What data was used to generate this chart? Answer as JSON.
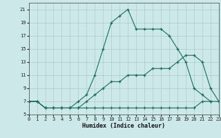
{
  "xlabel": "Humidex (Indice chaleur)",
  "background_color": "#cce8e8",
  "line_color": "#1a6b5a",
  "grid_color": "#aacccc",
  "xlim": [
    0,
    23
  ],
  "ylim": [
    5,
    22
  ],
  "yticks": [
    5,
    7,
    9,
    11,
    13,
    15,
    17,
    19,
    21
  ],
  "xticks": [
    0,
    1,
    2,
    3,
    4,
    5,
    6,
    7,
    8,
    9,
    10,
    11,
    12,
    13,
    14,
    15,
    16,
    17,
    18,
    19,
    20,
    21,
    22,
    23
  ],
  "curve_min_x": [
    0,
    1,
    2,
    3,
    4,
    5,
    6,
    7,
    8,
    9,
    10,
    11,
    12,
    13,
    14,
    15,
    16,
    17,
    18,
    19,
    20,
    21,
    22,
    23
  ],
  "curve_min_y": [
    7,
    7,
    6,
    6,
    6,
    6,
    6,
    6,
    6,
    6,
    6,
    6,
    6,
    6,
    6,
    6,
    6,
    6,
    6,
    6,
    6,
    7,
    7,
    7
  ],
  "curve_mid_x": [
    0,
    1,
    2,
    3,
    4,
    5,
    6,
    7,
    8,
    9,
    10,
    11,
    12,
    13,
    14,
    15,
    16,
    17,
    18,
    19,
    20,
    21,
    22,
    23
  ],
  "curve_mid_y": [
    7,
    7,
    6,
    6,
    6,
    6,
    6,
    7,
    8,
    9,
    10,
    10,
    11,
    11,
    11,
    12,
    12,
    12,
    13,
    14,
    14,
    13,
    9,
    7
  ],
  "curve_main_x": [
    0,
    1,
    2,
    3,
    4,
    5,
    6,
    7,
    8,
    9,
    10,
    11,
    12,
    13,
    14,
    15,
    16,
    17,
    18,
    19,
    20,
    21,
    22
  ],
  "curve_main_y": [
    7,
    7,
    6,
    6,
    6,
    6,
    7,
    8,
    11,
    15,
    19,
    20,
    21,
    18,
    18,
    18,
    18,
    17,
    15,
    13,
    9,
    8,
    7
  ]
}
